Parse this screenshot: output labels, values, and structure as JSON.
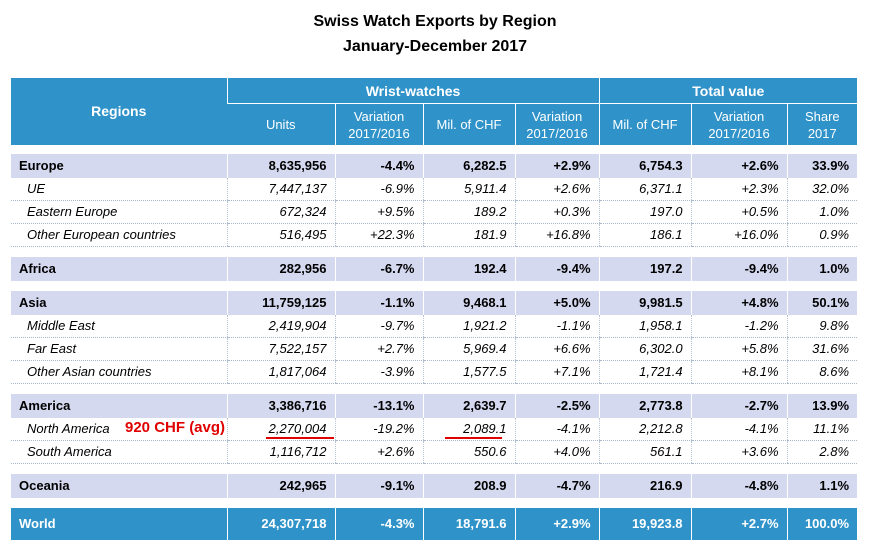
{
  "title": "Swiss Watch Exports by Region",
  "subtitle": "January-December 2017",
  "header": {
    "regions": "Regions",
    "wrist_watches": "Wrist-watches",
    "total_value": "Total value",
    "columns": [
      "Units",
      "Variation 2017/2016",
      "Mil. of CHF",
      "Variation 2017/2016",
      "Mil. of CHF",
      "Variation 2017/2016",
      "Share 2017"
    ]
  },
  "rows": [
    {
      "type": "region",
      "name": "Europe",
      "values": [
        "8,635,956",
        "-4.4%",
        "6,282.5",
        "+2.9%",
        "6,754.3",
        "+2.6%",
        "33.9%"
      ]
    },
    {
      "type": "sub",
      "name": "UE",
      "values": [
        "7,447,137",
        "-6.9%",
        "5,911.4",
        "+2.6%",
        "6,371.1",
        "+2.3%",
        "32.0%"
      ]
    },
    {
      "type": "sub",
      "name": "Eastern Europe",
      "values": [
        "672,324",
        "+9.5%",
        "189.2",
        "+0.3%",
        "197.0",
        "+0.5%",
        "1.0%"
      ]
    },
    {
      "type": "sub",
      "name": "Other European countries",
      "values": [
        "516,495",
        "+22.3%",
        "181.9",
        "+16.8%",
        "186.1",
        "+16.0%",
        "0.9%"
      ]
    },
    {
      "type": "region",
      "name": "Africa",
      "values": [
        "282,956",
        "-6.7%",
        "192.4",
        "-9.4%",
        "197.2",
        "-9.4%",
        "1.0%"
      ]
    },
    {
      "type": "region",
      "name": "Asia",
      "values": [
        "11,759,125",
        "-1.1%",
        "9,468.1",
        "+5.0%",
        "9,981.5",
        "+4.8%",
        "50.1%"
      ]
    },
    {
      "type": "sub",
      "name": "Middle East",
      "values": [
        "2,419,904",
        "-9.7%",
        "1,921.2",
        "-1.1%",
        "1,958.1",
        "-1.2%",
        "9.8%"
      ]
    },
    {
      "type": "sub",
      "name": "Far East",
      "values": [
        "7,522,157",
        "+2.7%",
        "5,969.4",
        "+6.6%",
        "6,302.0",
        "+5.8%",
        "31.6%"
      ]
    },
    {
      "type": "sub",
      "name": "Other Asian countries",
      "values": [
        "1,817,064",
        "-3.9%",
        "1,577.5",
        "+7.1%",
        "1,721.4",
        "+8.1%",
        "8.6%"
      ]
    },
    {
      "type": "region",
      "name": "America",
      "values": [
        "3,386,716",
        "-13.1%",
        "2,639.7",
        "-2.5%",
        "2,773.8",
        "-2.7%",
        "13.9%"
      ]
    },
    {
      "type": "sub",
      "name": "North America",
      "values": [
        "2,270,004",
        "-19.2%",
        "2,089.1",
        "-4.1%",
        "2,212.8",
        "-4.1%",
        "11.1%"
      ]
    },
    {
      "type": "sub",
      "name": "South America",
      "values": [
        "1,116,712",
        "+2.6%",
        "550.6",
        "+4.0%",
        "561.1",
        "+3.6%",
        "2.8%"
      ]
    },
    {
      "type": "region",
      "name": "Oceania",
      "values": [
        "242,965",
        "-9.1%",
        "208.9",
        "-4.7%",
        "216.9",
        "-4.8%",
        "1.1%"
      ]
    },
    {
      "type": "world",
      "name": "World",
      "values": [
        "24,307,718",
        "-4.3%",
        "18,791.6",
        "+2.9%",
        "19,923.8",
        "+2.7%",
        "100.0%"
      ]
    }
  ],
  "annotation": "920 CHF (avg)",
  "colors": {
    "header_blue": "#2f93c9",
    "region_row": "#d5d9ef",
    "annotation_red": "#e00000"
  }
}
